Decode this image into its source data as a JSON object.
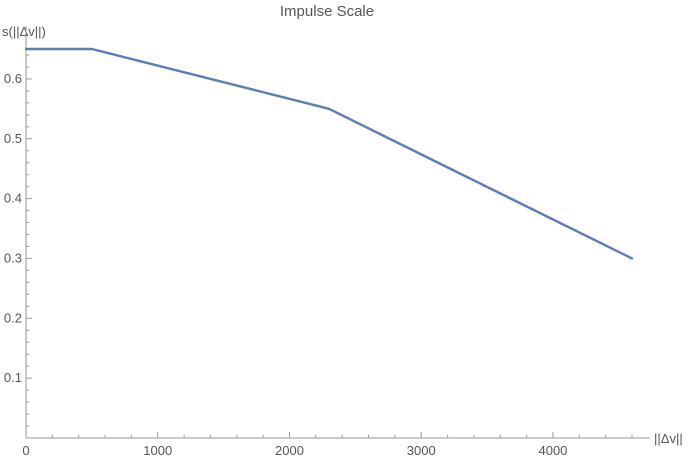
{
  "chart_data": {
    "type": "line",
    "title": "Impulse Scale",
    "xlabel": "||Δv||",
    "ylabel": "s(||Δv||)",
    "xlim": [
      0,
      4600
    ],
    "ylim": [
      0,
      0.65
    ],
    "x_ticks": [
      0,
      1000,
      2000,
      3000,
      4000
    ],
    "y_ticks": [
      0.1,
      0.2,
      0.3,
      0.4,
      0.5,
      0.6
    ],
    "grid": false,
    "series": [
      {
        "color": "#5b7fb3",
        "x": [
          0,
          500,
          2300,
          4600
        ],
        "y": [
          0.65,
          0.65,
          0.55,
          0.3
        ]
      }
    ]
  }
}
